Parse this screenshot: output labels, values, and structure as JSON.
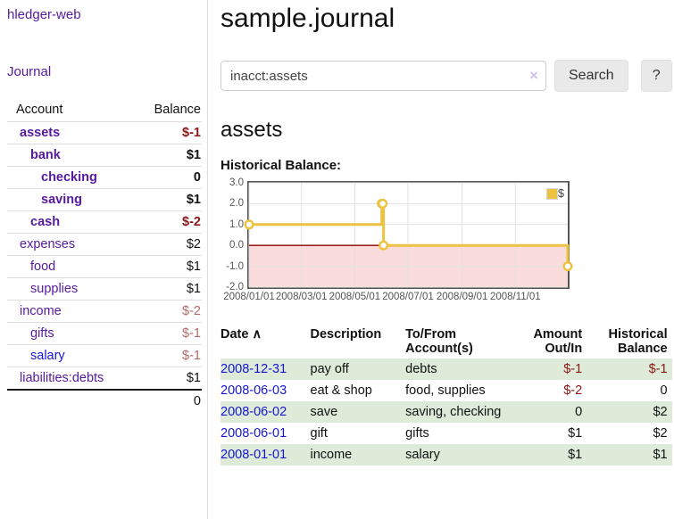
{
  "sidebar": {
    "brand": "hledger-web",
    "nav": [
      {
        "label": "Journal"
      }
    ],
    "accounts_table": {
      "headers": {
        "account": "Account",
        "balance": "Balance"
      },
      "rows": [
        {
          "name": "assets",
          "depth": 1,
          "bold": true,
          "balance": "$-1",
          "balance_style": "neg-strong"
        },
        {
          "name": "bank",
          "depth": 2,
          "bold": true,
          "balance": "$1",
          "balance_style": "pos"
        },
        {
          "name": "checking",
          "depth": 3,
          "bold": true,
          "balance": "0",
          "balance_style": "pos"
        },
        {
          "name": "saving",
          "depth": 3,
          "bold": true,
          "balance": "$1",
          "balance_style": "pos"
        },
        {
          "name": "cash",
          "depth": 2,
          "bold": true,
          "balance": "$-2",
          "balance_style": "neg-strong"
        },
        {
          "name": "expenses",
          "depth": 1,
          "bold": false,
          "balance": "$2",
          "balance_style": "pos"
        },
        {
          "name": "food",
          "depth": 2,
          "bold": false,
          "balance": "$1",
          "balance_style": "pos"
        },
        {
          "name": "supplies",
          "depth": 2,
          "bold": false,
          "balance": "$1",
          "balance_style": "pos"
        },
        {
          "name": "income",
          "depth": 1,
          "bold": false,
          "balance": "$-2",
          "balance_style": "neg-soft"
        },
        {
          "name": "gifts",
          "depth": 2,
          "bold": false,
          "balance": "$-1",
          "balance_style": "neg-soft"
        },
        {
          "name": "salary",
          "depth": 2,
          "bold": false,
          "balance": "$-1",
          "balance_style": "neg-soft",
          "link_style": "blue"
        },
        {
          "name": "liabilities:debts",
          "depth": 1,
          "bold": false,
          "balance": "$1",
          "balance_style": "pos"
        }
      ],
      "total": "0"
    }
  },
  "main": {
    "title": "sample.journal",
    "search": {
      "value": "inacct:assets",
      "clear_icon": "×",
      "button": "Search",
      "help_button": "?"
    },
    "account_heading": "assets",
    "chart_label": "Historical Balance:"
  },
  "chart_data": {
    "type": "line",
    "step": true,
    "title": "Historical Balance",
    "series": [
      {
        "name": "$",
        "color": "#edc240",
        "points": [
          [
            "2008-01-01",
            1
          ],
          [
            "2008-06-01",
            2
          ],
          [
            "2008-06-02",
            2
          ],
          [
            "2008-06-03",
            0
          ],
          [
            "2008-12-31",
            -1
          ]
        ]
      }
    ],
    "xlim": [
      "2008-01-01",
      "2008-12-31"
    ],
    "ylim": [
      -2,
      3
    ],
    "x_ticks": [
      {
        "date": "2008-01-01",
        "label": "2008/01/01"
      },
      {
        "date": "2008-03-01",
        "label": "2008/03/01"
      },
      {
        "date": "2008-05-01",
        "label": "2008/05/01"
      },
      {
        "date": "2008-07-01",
        "label": "2008/07/01"
      },
      {
        "date": "2008-09-01",
        "label": "2008/09/01"
      },
      {
        "date": "2008-11-01",
        "label": "2008/11/01"
      }
    ],
    "y_ticks": [
      3,
      2,
      1,
      0,
      -1,
      -2
    ],
    "grid": true,
    "legend_position": "top-right",
    "negative_region_color": "#fbdcdc",
    "zero_line_color": "#8b0000",
    "grid_color": "#e2e2e2",
    "border_color": "#545454"
  },
  "register": {
    "headers": {
      "date": "Date",
      "sort_indicator": "∧",
      "description": "Description",
      "accounts": "To/From Account(s)",
      "amount": "Amount Out/In",
      "balance": "Historical Balance"
    },
    "rows": [
      {
        "date": "2008-12-31",
        "description": "pay off",
        "accounts": "debts",
        "amount": "$-1",
        "amount_style": "neg",
        "balance": "$-1",
        "balance_style": "neg"
      },
      {
        "date": "2008-06-03",
        "description": "eat & shop",
        "accounts": "food, supplies",
        "amount": "$-2",
        "amount_style": "neg",
        "balance": "0",
        "balance_style": "pos"
      },
      {
        "date": "2008-06-02",
        "description": "save",
        "accounts": "saving, checking",
        "amount": "0",
        "amount_style": "pos",
        "balance": "$2",
        "balance_style": "pos"
      },
      {
        "date": "2008-06-01",
        "description": "gift",
        "accounts": "gifts",
        "amount": "$1",
        "amount_style": "pos",
        "balance": "$2",
        "balance_style": "pos"
      },
      {
        "date": "2008-01-01",
        "description": "income",
        "accounts": "salary",
        "amount": "$1",
        "amount_style": "pos",
        "balance": "$1",
        "balance_style": "pos"
      }
    ]
  },
  "colors": {
    "link_purple": "#551a9e",
    "link_blue": "#1616d1",
    "negative_strong": "#8c1717",
    "negative_soft": "#b06a6a",
    "row_green": "#ddebd8",
    "chart_line": "#edc240",
    "chart_negative_fill": "#fbdcdc",
    "chart_zero_line": "#8b0000"
  }
}
